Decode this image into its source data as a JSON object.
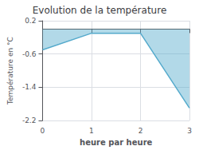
{
  "chart_data": {
    "type": "area",
    "title": "Evolution de la température",
    "xlabel": "heure par heure",
    "ylabel": "Température en °C",
    "x": [
      0,
      1,
      2,
      3
    ],
    "values": [
      -0.5,
      -0.1,
      -0.1,
      -1.9
    ],
    "color": "#55aacc",
    "xlim": [
      0,
      3
    ],
    "ylim": [
      -2.2,
      0.2
    ],
    "xticks": [
      0,
      1,
      2,
      3
    ],
    "yticks": [
      0.2,
      -0.6,
      -1.4,
      -2.2
    ],
    "grid": true
  }
}
